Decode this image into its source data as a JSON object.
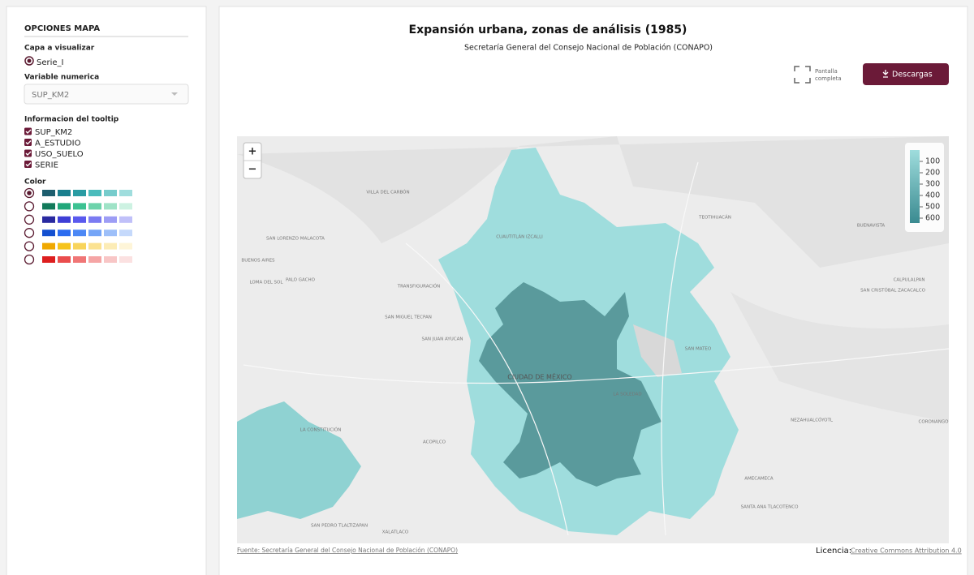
{
  "sidebar": {
    "title": "OPCIONES MAPA",
    "layer_label": "Capa a visualizar",
    "layer_option": "Serie_I",
    "variable_label": "Variable numerica",
    "variable_selected": "SUP_KM2",
    "tooltip_label": "Informacion del tooltip",
    "tooltip_fields": [
      "SUP_KM2",
      "A_ESTUDIO",
      "USO_SUELO",
      "SERIE"
    ],
    "color_label": "Color",
    "color_palettes": [
      [
        "#1d5e6e",
        "#1a7f8e",
        "#2a9ca3",
        "#4bbcbc",
        "#76cccc",
        "#9fdddd"
      ],
      [
        "#127a5a",
        "#20a77a",
        "#3cc292",
        "#6dd3ab",
        "#9fe3c7",
        "#cdf2e2"
      ],
      [
        "#2929a0",
        "#3e3ed6",
        "#5a5aee",
        "#7b7bf2",
        "#9d9df5",
        "#c0c0f9"
      ],
      [
        "#1450d0",
        "#2b6cf0",
        "#4c88f5",
        "#75a5f7",
        "#9dbff9",
        "#c5d9fb"
      ],
      [
        "#f0a800",
        "#f6c31b",
        "#f8d45b",
        "#fbe291",
        "#fcecb6",
        "#fef5d8"
      ],
      [
        "#dd1e1e",
        "#ea4d4d",
        "#f07676",
        "#f5a5a5",
        "#f8c6c6",
        "#fbe1e1"
      ]
    ]
  },
  "header": {
    "title": "Expansión urbana, zonas de análisis (1985)",
    "subtitle": "Secretaría General del Consejo Nacional de Población (CONAPO)",
    "fullscreen_button": [
      "Pantalla",
      "completa"
    ],
    "download_button": "Descargas"
  },
  "map": {
    "zoom_in": "+",
    "zoom_out": "−",
    "legend_ticks": [
      100,
      200,
      300,
      400,
      500,
      600
    ],
    "places": [
      "CIUDAD DE MÉXICO",
      "VILLA DEL CARBÓN",
      "CUAUTITLÁN IZCALLI",
      "BUENOS AIRES",
      "SAN LORENZO MALACOTA",
      "LOMA DEL SOL",
      "PALO GACHO",
      "TRANSFIGURACIÓN",
      "SAN MIGUEL TECPAN",
      "SAN JUAN AYUCAN",
      "LA CONSTITUCIÓN",
      "ACOPILCO",
      "XALATLACO",
      "SAN PEDRO TLALTIZAPAN",
      "TEOTIHUACÁN",
      "BUENAVISTA",
      "CALPULALPAN",
      "SAN CRISTÓBAL ZACACALCO",
      "LA SOLEDAD",
      "NEZAHUALCÓYOTL",
      "SANTA ANA TLACOTENCO",
      "SAN MATEO",
      "AMECAMECA",
      "CORONANGO"
    ]
  },
  "footer": {
    "source": "Fuente: Secretaría General del Consejo Nacional de Población (CONAPO)",
    "license_label": "Licencia:",
    "license_link": "Creative Commons Attribution 4.0"
  }
}
